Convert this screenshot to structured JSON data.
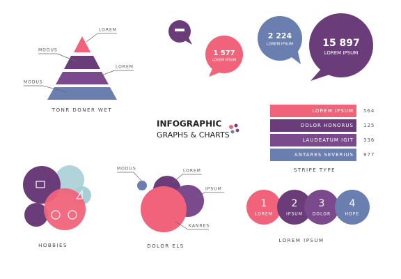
{
  "pyramid": {
    "labels": [
      "LOREM",
      "MODUS",
      "LOREM",
      "MODUS"
    ],
    "caption": "TONR DONER WET"
  },
  "bubbles": [
    {
      "number": "1 577",
      "text": "LOREM IPSUM"
    },
    {
      "number": "2 224",
      "text": "LOREM IPSUM"
    },
    {
      "number": "15 897",
      "text": "LOREM IPSUM"
    }
  ],
  "header": {
    "title": "INFOGRAPHIC",
    "subtitle": "GRAPHS & CHARTS"
  },
  "stripes": {
    "rows": [
      {
        "label": "LOREM IPSUM",
        "value": "564"
      },
      {
        "label": "DOLOR HONORUS",
        "value": "125"
      },
      {
        "label": "LAUDEATUM IGIT",
        "value": "336"
      },
      {
        "label": "ANTARES SEVERIUS",
        "value": "977"
      }
    ],
    "caption": "STRIPE TYPE"
  },
  "hobbies": {
    "caption": "HOBBIES"
  },
  "circles": {
    "labels": [
      "MODUS",
      "LOREM",
      "IPSUM",
      "KANRES"
    ],
    "caption": "DOLOR ELS"
  },
  "steps": {
    "items": [
      {
        "number": "1",
        "label": "LOREM"
      },
      {
        "number": "2",
        "label": "IPSUM"
      },
      {
        "number": "3",
        "label": "DOLOR"
      },
      {
        "number": "4",
        "label": "HOPE"
      }
    ],
    "caption": "LOREM IPSUM"
  }
}
